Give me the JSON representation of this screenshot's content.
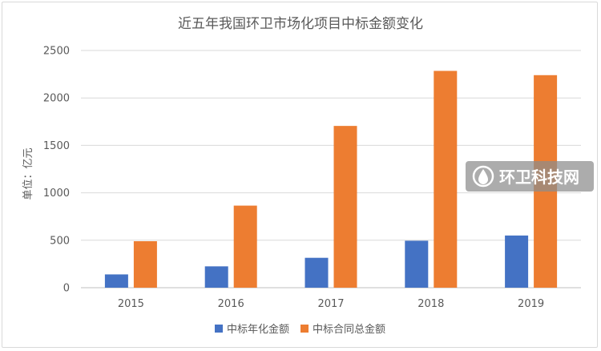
{
  "chart_data": {
    "type": "bar",
    "title": "近五年我国环卫市场化项目中标金额变化",
    "ylabel": "单位：亿元",
    "xlabel": "",
    "categories": [
      "2015",
      "2016",
      "2017",
      "2018",
      "2019"
    ],
    "series": [
      {
        "name": "中标年化金额",
        "color": "#4472c4",
        "values": [
          140,
          225,
          315,
          495,
          550
        ]
      },
      {
        "name": "中标合同总金额",
        "color": "#ed7d31",
        "values": [
          490,
          865,
          1705,
          2285,
          2240
        ]
      }
    ],
    "ylim": [
      0,
      2500
    ],
    "yticks": [
      0,
      500,
      1000,
      1500,
      2000,
      2500
    ],
    "grid": true,
    "legend_position": "bottom"
  },
  "watermark": {
    "text": "环卫科技网",
    "icon": "water-drop-logo-icon"
  }
}
